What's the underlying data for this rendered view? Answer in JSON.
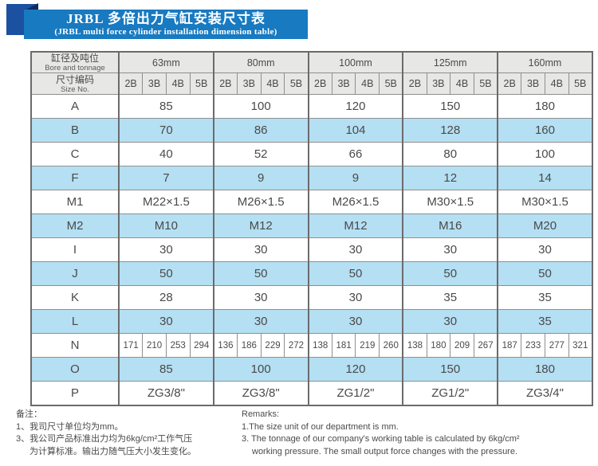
{
  "banner": {
    "title_cn": "JRBL 多倍出力气缸安装尺寸表",
    "title_en": "(JRBL multi force cylinder installation dimension table)"
  },
  "colors": {
    "banner_blue": "#187ac1",
    "ribbon_dark_blue": "#1c50a0",
    "ribbon_fold_navy": "#0e2b5c",
    "highlight_row_blue": "#b5dff3",
    "header_gray": "#e7e7e5"
  },
  "table": {
    "corner_cn": "缸径及吨位",
    "corner_en": "Bore and tonnage",
    "size_no_cn": "尺寸编码",
    "size_no_en": "Size No.",
    "bore_sizes": [
      "63mm",
      "80mm",
      "100mm",
      "125mm",
      "160mm"
    ],
    "size_codes": [
      "2B",
      "3B",
      "4B",
      "5B"
    ],
    "rows": [
      {
        "label": "A",
        "highlight": false,
        "cells": [
          "85",
          "100",
          "120",
          "150",
          "180"
        ]
      },
      {
        "label": "B",
        "highlight": true,
        "cells": [
          "70",
          "86",
          "104",
          "128",
          "160"
        ]
      },
      {
        "label": "C",
        "highlight": false,
        "cells": [
          "40",
          "52",
          "66",
          "80",
          "100"
        ]
      },
      {
        "label": "F",
        "highlight": true,
        "cells": [
          "7",
          "9",
          "9",
          "12",
          "14"
        ]
      },
      {
        "label": "M1",
        "highlight": false,
        "cells": [
          "M22×1.5",
          "M26×1.5",
          "M26×1.5",
          "M30×1.5",
          "M30×1.5"
        ]
      },
      {
        "label": "M2",
        "highlight": true,
        "cells": [
          "M10",
          "M12",
          "M12",
          "M16",
          "M20"
        ]
      },
      {
        "label": "I",
        "highlight": false,
        "cells": [
          "30",
          "30",
          "30",
          "30",
          "30"
        ]
      },
      {
        "label": "J",
        "highlight": true,
        "cells": [
          "50",
          "50",
          "50",
          "50",
          "50"
        ]
      },
      {
        "label": "K",
        "highlight": false,
        "cells": [
          "28",
          "30",
          "30",
          "35",
          "35"
        ]
      },
      {
        "label": "L",
        "highlight": true,
        "cells": [
          "30",
          "30",
          "30",
          "30",
          "35"
        ]
      },
      {
        "label": "N",
        "highlight": false,
        "cells": [
          "171",
          "210",
          "253",
          "294",
          "136",
          "186",
          "229",
          "272",
          "138",
          "181",
          "219",
          "260",
          "138",
          "180",
          "209",
          "267",
          "187",
          "233",
          "277",
          "321"
        ]
      },
      {
        "label": "O",
        "highlight": true,
        "cells": [
          "85",
          "100",
          "120",
          "150",
          "180"
        ]
      },
      {
        "label": "P",
        "highlight": false,
        "cells": [
          "ZG3/8\"",
          "ZG3/8\"",
          "ZG1/2\"",
          "ZG1/2\"",
          "ZG3/4\""
        ]
      }
    ]
  },
  "notes": {
    "cn_title": "备注：",
    "cn_line1": "1、我司尺寸单位均为mm。",
    "cn_line3a": "3、我公司产品标准出力均为6kg/cm²工作气压",
    "cn_line3b": "为计算标准。输出力随气压大小发生变化。",
    "en_title": "Remarks:",
    "en_line1": "1.The size unit of our department is mm.",
    "en_line3a": "3. The tonnage of our company's working table is calculated by 6kg/cm²",
    "en_line3b": "working pressure. The small output force changes with the pressure."
  }
}
